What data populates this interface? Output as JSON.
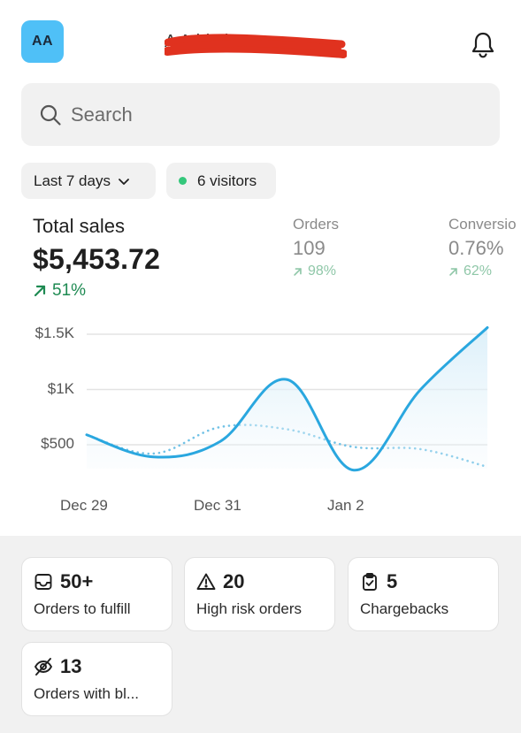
{
  "header": {
    "avatar_initials": "AA",
    "store_name": "A   Athletic"
  },
  "search": {
    "placeholder": "Search"
  },
  "filters": {
    "date_range": "Last 7 days",
    "visitors": "6 visitors"
  },
  "metrics": {
    "total_sales": {
      "label": "Total sales",
      "value": "$5,453.72",
      "change": "51%"
    },
    "orders": {
      "label": "Orders",
      "value": "109",
      "change": "98%"
    },
    "conversion": {
      "label": "Conversio",
      "value": "0.76%",
      "change": "62%"
    }
  },
  "chart_data": {
    "type": "line",
    "x": [
      0,
      0.5,
      1,
      1.5,
      2,
      2.5,
      3
    ],
    "x_tick_labels": [
      "Dec 29",
      "Dec 31",
      "Jan 2"
    ],
    "x_tick_positions": [
      0,
      1,
      2
    ],
    "y_tick_labels": [
      "$1.5K",
      "$1K",
      "$500"
    ],
    "y_tick_values": [
      1500,
      1000,
      500
    ],
    "ylim": [
      250,
      1600
    ],
    "series": [
      {
        "values": [
          590,
          390,
          530,
          1090,
          270,
          1000,
          1560
        ],
        "style": "solid",
        "color": "#2aa7df"
      },
      {
        "values": [
          590,
          420,
          660,
          640,
          480,
          460,
          300
        ],
        "style": "dotted",
        "color": "#72c2e6"
      }
    ],
    "grid": true
  },
  "tiles": [
    {
      "icon": "inbox-icon",
      "value": "50+",
      "label": "Orders to fulfill"
    },
    {
      "icon": "warning-icon",
      "value": "20",
      "label": "High risk orders"
    },
    {
      "icon": "clipboard-check-icon",
      "value": "5",
      "label": "Chargebacks"
    },
    {
      "icon": "eye-off-icon",
      "value": "13",
      "label": "Orders with bl..."
    }
  ],
  "colors": {
    "accent": "#2aa7df",
    "positive": "#1e8a52",
    "avatar": "#4fc0f7",
    "redaction": "#e0321f"
  }
}
